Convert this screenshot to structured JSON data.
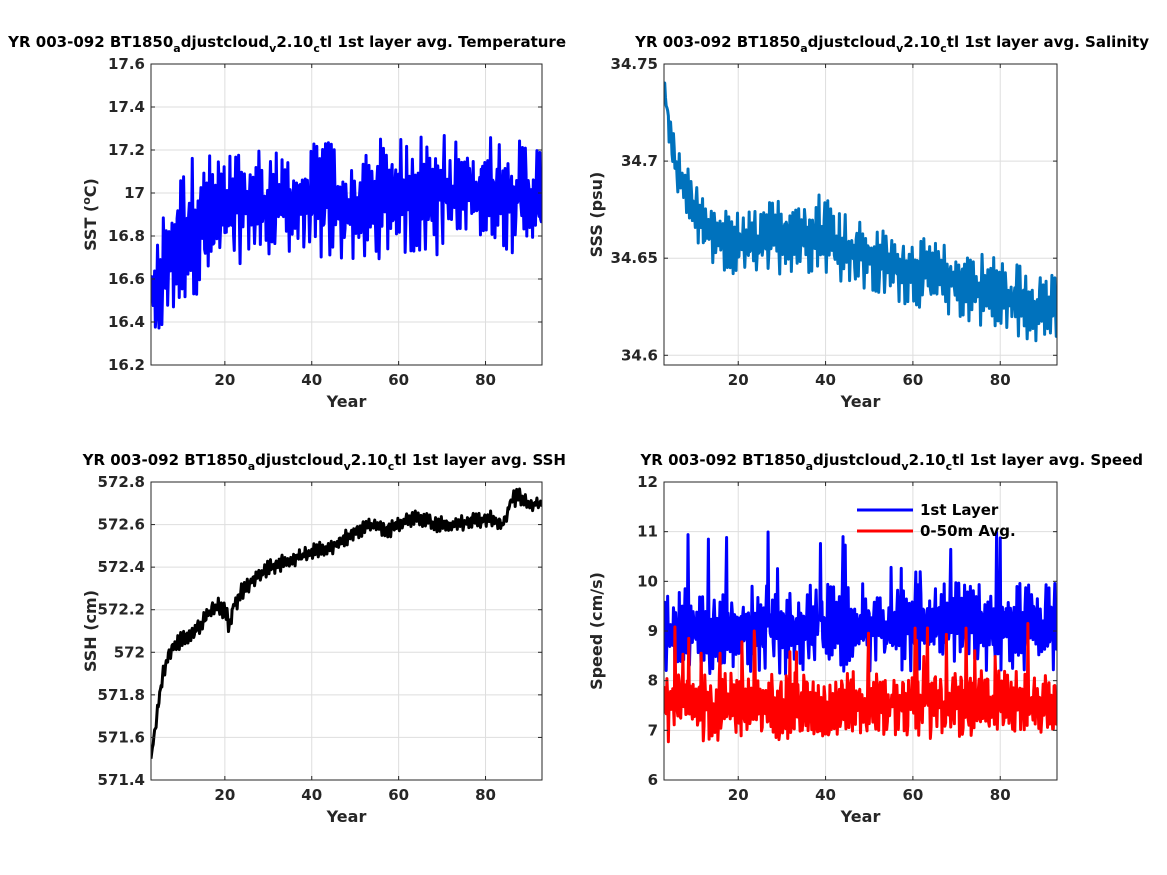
{
  "figure": {
    "background": "#ffffff",
    "grid_color": "#dedede"
  },
  "chart_data": [
    {
      "id": "temperature",
      "type": "line",
      "title_parts": [
        {
          "text": "YR 003-092 BT1850",
          "sub": false
        },
        {
          "text": "a",
          "sub": true
        },
        {
          "text": "djustcloud",
          "sub": false
        },
        {
          "text": "v",
          "sub": true
        },
        {
          "text": "2.10",
          "sub": false
        },
        {
          "text": "c",
          "sub": true
        },
        {
          "text": "tl 1st layer avg. Temperature",
          "sub": false
        }
      ],
      "xlabel": "Year",
      "ylabel_parts": [
        {
          "text": "SST (",
          "sup": false
        },
        {
          "text": "o",
          "sup": true
        },
        {
          "text": "C)",
          "sup": false
        }
      ],
      "xlim": [
        3,
        93
      ],
      "ylim": [
        16.2,
        17.6
      ],
      "xticks": [
        20,
        40,
        60,
        80
      ],
      "xtick_labels": [
        "20",
        "40",
        "60",
        "80"
      ],
      "yticks": [
        16.2,
        16.4,
        16.6,
        16.8,
        17.0,
        17.2,
        17.4,
        17.6
      ],
      "ytick_labels": [
        "16.2",
        "16.4",
        "16.6",
        "16.8",
        "17",
        "17.2",
        "17.4",
        "17.6"
      ],
      "grid": true,
      "series": [
        {
          "color": "#0000ff",
          "x": [
            3,
            4,
            5,
            6,
            8,
            10,
            12,
            14,
            16,
            18,
            20,
            22,
            25,
            28,
            31,
            34,
            37,
            40,
            43,
            46,
            49,
            52,
            55,
            58,
            61,
            64,
            67,
            70,
            73,
            76,
            79,
            82,
            85,
            88,
            91,
            93
          ],
          "y": [
            16.55,
            16.45,
            16.6,
            16.65,
            16.72,
            16.78,
            16.85,
            16.85,
            16.88,
            16.9,
            16.92,
            16.93,
            16.95,
            16.96,
            16.95,
            16.96,
            16.94,
            16.95,
            16.98,
            16.95,
            16.93,
            16.92,
            16.97,
            16.99,
            16.98,
            16.99,
            17.0,
            17.02,
            16.99,
            17.0,
            17.01,
            17.0,
            16.99,
            17.0,
            16.98,
            16.97
          ],
          "amplitude": [
            0.2,
            0.25,
            0.3,
            0.3,
            0.3,
            0.32,
            0.33,
            0.32,
            0.3,
            0.3,
            0.28,
            0.28,
            0.26,
            0.28,
            0.26,
            0.26,
            0.25,
            0.27,
            0.3,
            0.27,
            0.26,
            0.26,
            0.28,
            0.28,
            0.27,
            0.28,
            0.3,
            0.32,
            0.28,
            0.27,
            0.28,
            0.27,
            0.28,
            0.27,
            0.26,
            0.26
          ]
        }
      ]
    },
    {
      "id": "salinity",
      "type": "line",
      "title_parts": [
        {
          "text": "YR 003-092 BT1850",
          "sub": false
        },
        {
          "text": "a",
          "sub": true
        },
        {
          "text": "djustcloud",
          "sub": false
        },
        {
          "text": "v",
          "sub": true
        },
        {
          "text": "2.10",
          "sub": false
        },
        {
          "text": "c",
          "sub": true
        },
        {
          "text": "tl 1st layer avg. Salinity",
          "sub": false
        }
      ],
      "xlabel": "Year",
      "ylabel_parts": [
        {
          "text": "SSS (psu)",
          "sup": false
        }
      ],
      "xlim": [
        3,
        93
      ],
      "ylim": [
        34.595,
        34.75
      ],
      "xticks": [
        20,
        40,
        60,
        80
      ],
      "xtick_labels": [
        "20",
        "40",
        "60",
        "80"
      ],
      "yticks": [
        34.6,
        34.65,
        34.7,
        34.75
      ],
      "ytick_labels": [
        "34.6",
        "34.65",
        "34.7",
        "34.75"
      ],
      "grid": true,
      "series": [
        {
          "color": "#0072bd",
          "x": [
            3,
            4,
            5,
            6,
            8,
            10,
            12,
            15,
            18,
            21,
            24,
            27,
            30,
            33,
            36,
            39,
            42,
            45,
            48,
            51,
            54,
            57,
            60,
            63,
            66,
            69,
            72,
            75,
            78,
            81,
            84,
            87,
            90,
            93
          ],
          "y": [
            34.74,
            34.72,
            34.705,
            34.695,
            34.685,
            34.675,
            34.665,
            34.66,
            34.658,
            34.657,
            34.658,
            34.66,
            34.662,
            34.663,
            34.662,
            34.664,
            34.66,
            34.655,
            34.652,
            34.648,
            34.647,
            34.645,
            34.643,
            34.642,
            34.64,
            34.638,
            34.636,
            34.635,
            34.632,
            34.63,
            34.628,
            34.626,
            34.625,
            34.623
          ],
          "amplitude": [
            0.005,
            0.01,
            0.012,
            0.012,
            0.014,
            0.015,
            0.016,
            0.017,
            0.017,
            0.017,
            0.018,
            0.019,
            0.02,
            0.02,
            0.02,
            0.021,
            0.02,
            0.019,
            0.019,
            0.018,
            0.018,
            0.018,
            0.018,
            0.018,
            0.018,
            0.018,
            0.019,
            0.019,
            0.02,
            0.02,
            0.02,
            0.02,
            0.019,
            0.018
          ]
        }
      ]
    },
    {
      "id": "ssh",
      "type": "line",
      "title_parts": [
        {
          "text": "YR 003-092 BT1850",
          "sub": false
        },
        {
          "text": "a",
          "sub": true
        },
        {
          "text": "djustcloud",
          "sub": false
        },
        {
          "text": "v",
          "sub": true
        },
        {
          "text": "2.10",
          "sub": false
        },
        {
          "text": "c",
          "sub": true
        },
        {
          "text": "tl 1st layer avg. SSH",
          "sub": false
        }
      ],
      "xlabel": "Year",
      "ylabel_parts": [
        {
          "text": "SSH (cm)",
          "sup": false
        }
      ],
      "xlim": [
        3,
        93
      ],
      "ylim": [
        571.4,
        572.8
      ],
      "xticks": [
        20,
        40,
        60,
        80
      ],
      "xtick_labels": [
        "20",
        "40",
        "60",
        "80"
      ],
      "yticks": [
        571.4,
        571.6,
        571.8,
        572.0,
        572.2,
        572.4,
        572.6,
        572.8
      ],
      "ytick_labels": [
        "571.4",
        "571.6",
        "571.8",
        "572",
        "572.2",
        "572.4",
        "572.6",
        "572.8"
      ],
      "grid": true,
      "series": [
        {
          "color": "#000000",
          "x": [
            3,
            4,
            5,
            6,
            7,
            8,
            10,
            12,
            14,
            16,
            18,
            20,
            21,
            22,
            24,
            26,
            28,
            30,
            33,
            36,
            39,
            42,
            45,
            48,
            51,
            54,
            57,
            60,
            63,
            66,
            69,
            72,
            75,
            78,
            81,
            84,
            86,
            88,
            90,
            93
          ],
          "y": [
            571.5,
            571.65,
            571.8,
            571.92,
            571.98,
            572.02,
            572.06,
            572.08,
            572.12,
            572.18,
            572.22,
            572.2,
            572.12,
            572.22,
            572.28,
            572.33,
            572.37,
            572.4,
            572.42,
            572.44,
            572.46,
            572.48,
            572.5,
            572.54,
            572.58,
            572.6,
            572.57,
            572.6,
            572.63,
            572.62,
            572.6,
            572.6,
            572.61,
            572.62,
            572.63,
            572.6,
            572.72,
            572.73,
            572.69,
            572.7
          ],
          "amplitude": [
            0.0,
            0.03,
            0.04,
            0.04,
            0.04,
            0.04,
            0.04,
            0.04,
            0.04,
            0.04,
            0.04,
            0.05,
            0.05,
            0.04,
            0.05,
            0.04,
            0.04,
            0.04,
            0.04,
            0.04,
            0.04,
            0.04,
            0.04,
            0.04,
            0.04,
            0.04,
            0.04,
            0.04,
            0.04,
            0.04,
            0.04,
            0.04,
            0.04,
            0.04,
            0.04,
            0.04,
            0.04,
            0.04,
            0.03,
            0.03
          ]
        }
      ]
    },
    {
      "id": "speed",
      "type": "line",
      "title_parts": [
        {
          "text": "YR 003-092 BT1850",
          "sub": false
        },
        {
          "text": "a",
          "sub": true
        },
        {
          "text": "djustcloud",
          "sub": false
        },
        {
          "text": "v",
          "sub": true
        },
        {
          "text": "2.10",
          "sub": false
        },
        {
          "text": "c",
          "sub": true
        },
        {
          "text": "tl 1st layer avg. Speed",
          "sub": false
        }
      ],
      "xlabel": "Year",
      "ylabel_parts": [
        {
          "text": "Speed (cm/s)",
          "sup": false
        }
      ],
      "xlim": [
        3,
        93
      ],
      "ylim": [
        6,
        12
      ],
      "xticks": [
        20,
        40,
        60,
        80
      ],
      "xtick_labels": [
        "20",
        "40",
        "60",
        "80"
      ],
      "yticks": [
        6,
        7,
        8,
        9,
        10,
        11,
        12
      ],
      "ytick_labels": [
        "6",
        "7",
        "8",
        "9",
        "10",
        "11",
        "12"
      ],
      "grid": true,
      "legend_position": "top-right",
      "series": [
        {
          "name": "1st Layer",
          "color": "#0000ff",
          "x": [
            3,
            93
          ],
          "y": [
            9.0,
            9.1
          ],
          "amplitude": [
            0.9,
            0.9
          ],
          "peaks": 11.1
        },
        {
          "name": "0-50m Avg.",
          "color": "#ff0000",
          "x": [
            3,
            93
          ],
          "y": [
            7.45,
            7.55
          ],
          "amplitude": [
            0.75,
            0.75
          ],
          "peaks": 9.2
        }
      ]
    }
  ]
}
